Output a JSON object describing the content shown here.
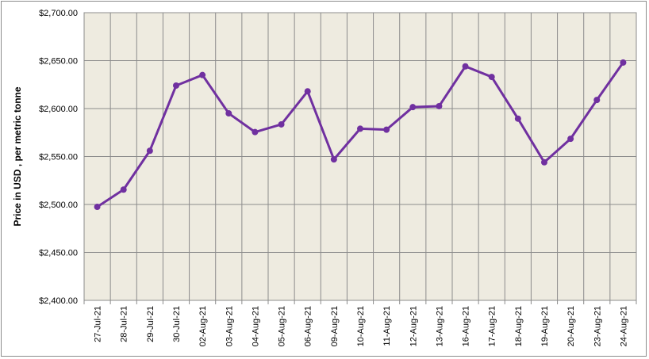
{
  "chart_data": {
    "type": "line",
    "title": "",
    "xlabel": "",
    "ylabel": "Price in USD , per metric tonne",
    "categories": [
      "27-Jul-21",
      "28-Jul-21",
      "29-Jul-21",
      "30-Jul-21",
      "02-Aug-21",
      "03-Aug-21",
      "04-Aug-21",
      "05-Aug-21",
      "06-Aug-21",
      "09-Aug-21",
      "10-Aug-21",
      "11-Aug-21",
      "12-Aug-21",
      "13-Aug-21",
      "16-Aug-21",
      "17-Aug-21",
      "18-Aug-21",
      "19-Aug-21",
      "20-Aug-21",
      "23-Aug-21",
      "24-Aug-21"
    ],
    "series": [
      {
        "values": [
          2497.5,
          2515.5,
          2556,
          2624,
          2635,
          2595,
          2575.5,
          2583.5,
          2618,
          2547,
          2579,
          2578,
          2601.5,
          2602.5,
          2644,
          2633,
          2589.5,
          2544,
          2568.5,
          2609,
          2648
        ],
        "color": "#7030A0"
      }
    ],
    "yticks": [
      "$2,400.00",
      "$2,450.00",
      "$2,500.00",
      "$2,550.00",
      "$2,600.00",
      "$2,650.00",
      "$2,700.00"
    ],
    "ylim": [
      2400,
      2700
    ],
    "grid": true,
    "legend": "none",
    "plot_background": "#EEEBE0",
    "grid_color": "#8C8C8C"
  }
}
